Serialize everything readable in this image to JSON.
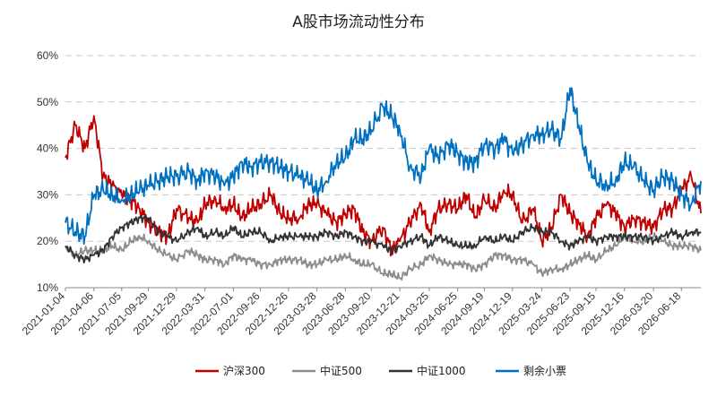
{
  "chart_data": {
    "type": "line",
    "title": "A股市场流动性分布",
    "xlabel": "",
    "ylabel": "",
    "ylim": [
      10,
      60
    ],
    "y_unit": "%",
    "y_ticks": [
      "10%",
      "20%",
      "30%",
      "40%",
      "50%",
      "60%"
    ],
    "grid": "horizontal dashed",
    "legend_position": "bottom",
    "x_tick_labels": [
      "2021-01-04",
      "2021-04-06",
      "2021-07-05",
      "2021-09-29",
      "2021-12-29",
      "2022-03-31",
      "2022-07-01",
      "2022-09-26",
      "2022-12-26",
      "2023-03-28",
      "2023-06-28",
      "2023-09-20",
      "2023-12-21",
      "2024-03-25",
      "2024-06-25",
      "2024-09-19",
      "2024-12-19",
      "2025-03-24",
      "2025-06-23",
      "2025-09-15",
      "2025-12-16",
      "2026-03-20",
      "2026-06-18"
    ],
    "x": [
      "2021-01-04",
      "2021-02-05",
      "2021-03-08",
      "2021-04-06",
      "2021-05-06",
      "2021-06-04",
      "2021-07-05",
      "2021-08-03",
      "2021-09-01",
      "2021-09-29",
      "2021-11-01",
      "2021-12-01",
      "2021-12-29",
      "2022-02-07",
      "2022-03-08",
      "2022-03-31",
      "2022-05-05",
      "2022-06-02",
      "2022-07-01",
      "2022-07-29",
      "2022-08-26",
      "2022-09-26",
      "2022-10-31",
      "2022-11-28",
      "2022-12-26",
      "2023-01-30",
      "2023-02-27",
      "2023-03-28",
      "2023-04-27",
      "2023-05-30",
      "2023-06-28",
      "2023-07-26",
      "2023-08-23",
      "2023-09-20",
      "2023-10-27",
      "2023-11-24",
      "2023-12-21",
      "2024-01-22",
      "2024-02-28",
      "2024-03-25",
      "2024-04-23",
      "2024-05-27",
      "2024-06-25",
      "2024-07-23",
      "2024-08-20",
      "2024-09-19",
      "2024-10-24",
      "2024-11-21",
      "2024-12-19",
      "2025-01-20",
      "2025-02-24",
      "2025-03-24",
      "2025-04-24",
      "2025-05-26",
      "2025-06-23",
      "2025-07-21",
      "2025-08-18",
      "2025-09-15",
      "2025-10-20",
      "2025-11-17",
      "2025-12-16",
      "2026-01-15",
      "2026-02-17",
      "2026-03-20",
      "2026-04-20",
      "2026-05-20",
      "2026-06-18",
      "2026-07-20",
      "2026-08-20"
    ],
    "series": [
      {
        "name": "沪深300",
        "color": "#c00000",
        "values": [
          38,
          45,
          40,
          47,
          34,
          32,
          30,
          29,
          27,
          24,
          22,
          21,
          27,
          25,
          24,
          28,
          29,
          27,
          28,
          25,
          27,
          28,
          30,
          26,
          25,
          25,
          28,
          28,
          26,
          24,
          26,
          27,
          22,
          20,
          23,
          18,
          20,
          24,
          28,
          22,
          27,
          28,
          27,
          30,
          25,
          29,
          27,
          31,
          30,
          24,
          27,
          20,
          23,
          30,
          26,
          24,
          21,
          25,
          28,
          26,
          23,
          25,
          24,
          23,
          27,
          27,
          31,
          34,
          26
        ]
      },
      {
        "name": "中证500",
        "color": "#8c8c8c",
        "values": [
          19,
          17,
          18,
          18,
          18,
          19,
          18,
          20,
          21,
          20,
          18,
          17,
          16,
          18,
          17,
          16,
          16,
          15,
          17,
          16,
          16,
          15,
          15,
          16,
          16,
          16,
          15,
          15,
          16,
          16,
          17,
          16,
          15,
          15,
          13,
          13,
          12,
          14,
          15,
          17,
          16,
          15,
          15,
          15,
          14,
          15,
          17,
          17,
          16,
          16,
          15,
          13,
          14,
          14,
          15,
          16,
          17,
          16,
          18,
          19,
          21,
          20,
          20,
          21,
          20,
          19,
          19,
          19,
          18
        ]
      },
      {
        "name": "中证1000",
        "color": "#333333",
        "values": [
          19,
          17,
          16,
          17,
          18,
          21,
          23,
          24,
          25,
          25,
          22,
          21,
          20,
          22,
          23,
          21,
          22,
          21,
          23,
          21,
          22,
          22,
          20,
          21,
          21,
          21,
          21,
          21,
          22,
          21,
          22,
          21,
          20,
          20,
          19,
          18,
          19,
          20,
          21,
          19,
          21,
          20,
          19,
          19,
          19,
          21,
          20,
          21,
          20,
          22,
          23,
          22,
          22,
          20,
          19,
          20,
          21,
          20,
          21,
          21,
          21,
          21,
          21,
          20,
          21,
          22,
          21,
          22,
          22
        ]
      },
      {
        "name": "剩余小票",
        "color": "#0070c0",
        "values": [
          24,
          22,
          21,
          30,
          31,
          30,
          29,
          30,
          31,
          32,
          33,
          34,
          34,
          35,
          33,
          35,
          34,
          32,
          34,
          37,
          36,
          37,
          37,
          36,
          35,
          34,
          33,
          31,
          33,
          37,
          38,
          42,
          42,
          44,
          49,
          47,
          44,
          36,
          34,
          40,
          38,
          41,
          39,
          37,
          37,
          41,
          40,
          42,
          39,
          41,
          43,
          43,
          44,
          42,
          53,
          45,
          37,
          33,
          32,
          33,
          37,
          36,
          33,
          31,
          34,
          33,
          30,
          28,
          33
        ]
      }
    ]
  }
}
